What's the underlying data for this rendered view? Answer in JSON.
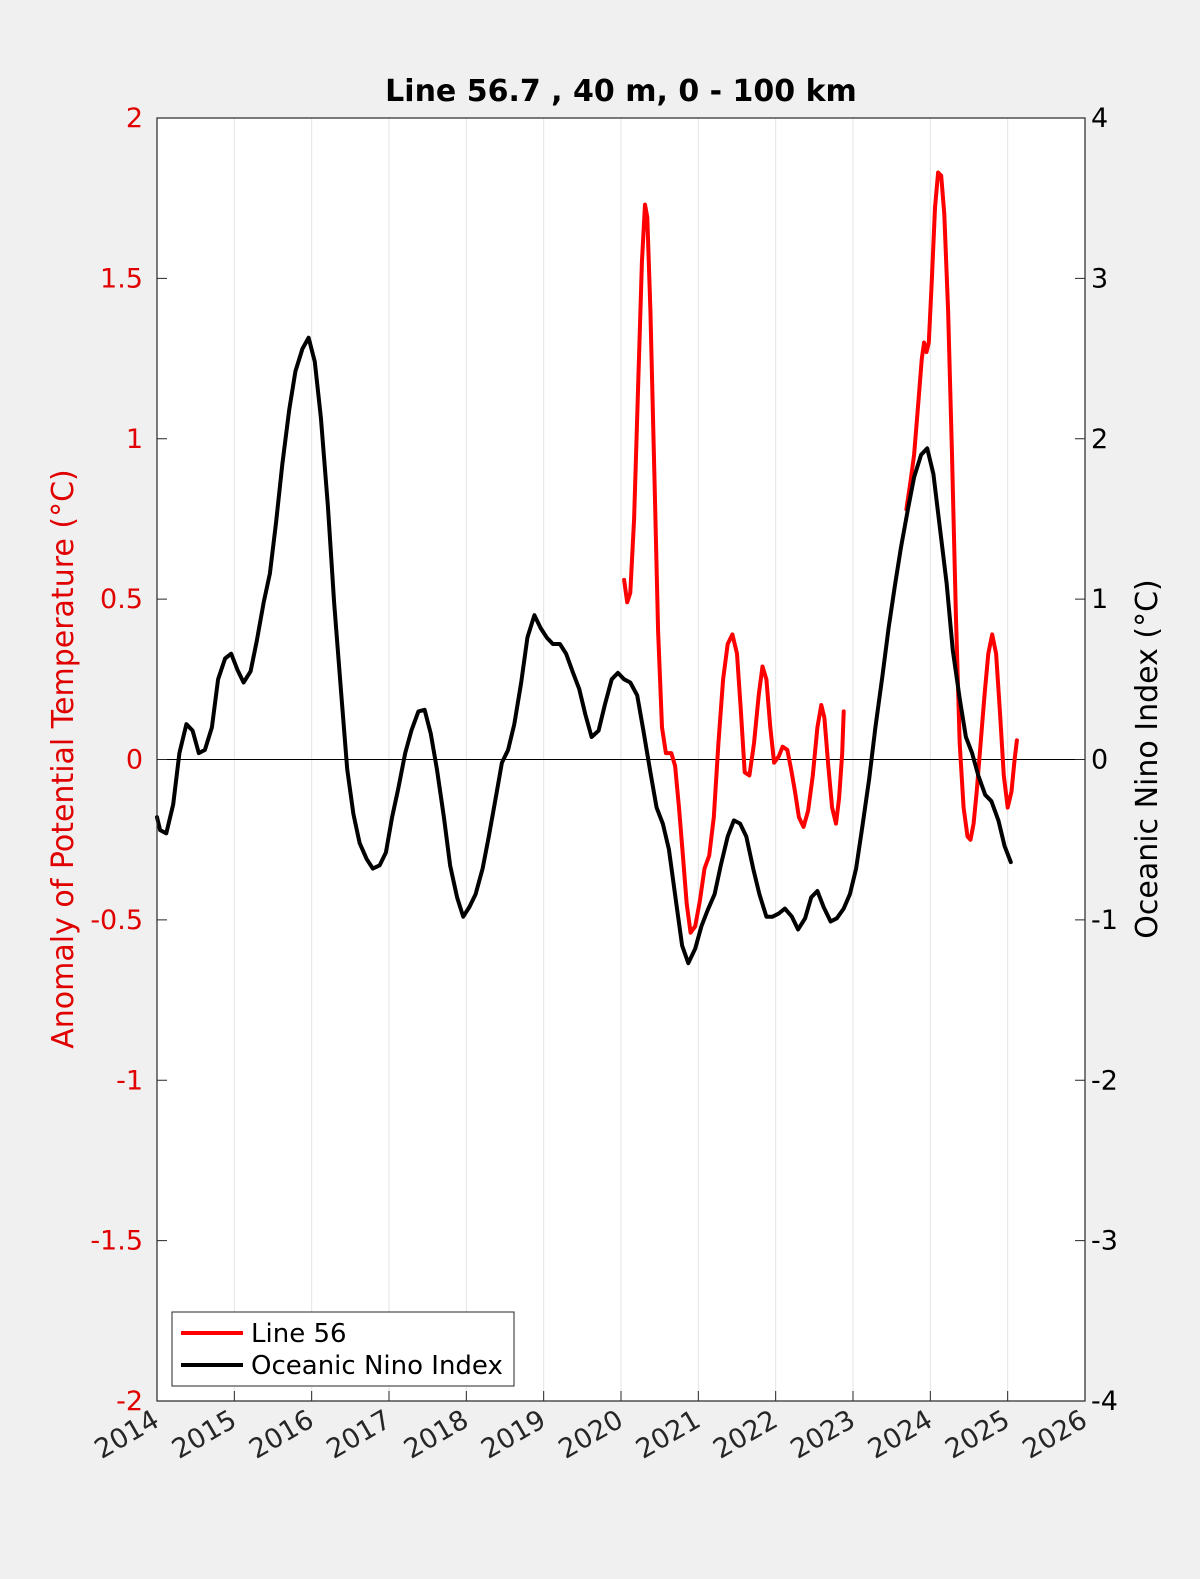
{
  "chart_data": {
    "type": "line",
    "title": "Line 56.7 , 40 m, 0 - 100 km",
    "ylabel_left": "Anomaly of Potential Temperature (°C)",
    "ylabel_right": "Oceanic Nino Index (°C)",
    "xlim": [
      2014,
      2026
    ],
    "ylim_left": [
      -2,
      2
    ],
    "ylim_right": [
      -4,
      4
    ],
    "x_ticks": [
      "2014",
      "2015",
      "2016",
      "2017",
      "2018",
      "2019",
      "2020",
      "2021",
      "2022",
      "2023",
      "2024",
      "2025",
      "2026"
    ],
    "y_ticks_left": [
      "-2",
      "-1.5",
      "-1",
      "-0.5",
      "0",
      "0.5",
      "1",
      "1.5",
      "2"
    ],
    "y_ticks_right": [
      "-4",
      "-3",
      "-2",
      "-1",
      "0",
      "1",
      "2",
      "3",
      "4"
    ],
    "grid": "vertical",
    "legend_position": "bottom-left",
    "colors": {
      "line56": "#ff0000",
      "oni": "#000000",
      "left_axis": "#e00000",
      "right_axis": "#000000"
    },
    "series": [
      {
        "name": "Line 56",
        "axis": "left",
        "segments": [
          [
            [
              2020.04,
              0.56
            ],
            [
              2020.08,
              0.49
            ],
            [
              2020.12,
              0.52
            ],
            [
              2020.17,
              0.75
            ],
            [
              2020.22,
              1.15
            ],
            [
              2020.27,
              1.55
            ],
            [
              2020.31,
              1.73
            ],
            [
              2020.34,
              1.69
            ],
            [
              2020.38,
              1.4
            ],
            [
              2020.43,
              0.9
            ],
            [
              2020.48,
              0.4
            ],
            [
              2020.53,
              0.1
            ],
            [
              2020.58,
              0.02
            ],
            [
              2020.65,
              0.02
            ],
            [
              2020.7,
              -0.02
            ],
            [
              2020.75,
              -0.15
            ],
            [
              2020.8,
              -0.3
            ],
            [
              2020.85,
              -0.45
            ],
            [
              2020.9,
              -0.54
            ],
            [
              2020.96,
              -0.52
            ],
            [
              2021.02,
              -0.44
            ],
            [
              2021.08,
              -0.34
            ],
            [
              2021.14,
              -0.3
            ],
            [
              2021.2,
              -0.18
            ],
            [
              2021.26,
              0.05
            ],
            [
              2021.32,
              0.25
            ],
            [
              2021.38,
              0.36
            ],
            [
              2021.44,
              0.39
            ],
            [
              2021.5,
              0.33
            ],
            [
              2021.55,
              0.15
            ],
            [
              2021.6,
              -0.04
            ],
            [
              2021.66,
              -0.05
            ],
            [
              2021.72,
              0.05
            ],
            [
              2021.78,
              0.2
            ],
            [
              2021.83,
              0.29
            ],
            [
              2021.88,
              0.25
            ],
            [
              2021.93,
              0.1
            ],
            [
              2021.98,
              -0.01
            ],
            [
              2022.04,
              0.01
            ],
            [
              2022.09,
              0.04
            ],
            [
              2022.15,
              0.03
            ],
            [
              2022.2,
              -0.03
            ],
            [
              2022.25,
              -0.1
            ],
            [
              2022.3,
              -0.18
            ],
            [
              2022.36,
              -0.21
            ],
            [
              2022.42,
              -0.16
            ],
            [
              2022.48,
              -0.05
            ],
            [
              2022.54,
              0.1
            ],
            [
              2022.59,
              0.17
            ],
            [
              2022.63,
              0.13
            ],
            [
              2022.68,
              -0.02
            ],
            [
              2022.73,
              -0.15
            ],
            [
              2022.78,
              -0.2
            ],
            [
              2022.82,
              -0.12
            ],
            [
              2022.86,
              0.02
            ],
            [
              2022.88,
              0.15
            ]
          ],
          [
            [
              2023.69,
              0.78
            ],
            [
              2023.74,
              0.86
            ],
            [
              2023.79,
              0.95
            ],
            [
              2023.84,
              1.1
            ],
            [
              2023.89,
              1.25
            ],
            [
              2023.92,
              1.3
            ],
            [
              2023.95,
              1.27
            ],
            [
              2023.98,
              1.3
            ],
            [
              2024.02,
              1.5
            ],
            [
              2024.06,
              1.72
            ],
            [
              2024.1,
              1.83
            ],
            [
              2024.14,
              1.82
            ],
            [
              2024.18,
              1.7
            ],
            [
              2024.23,
              1.4
            ],
            [
              2024.28,
              0.95
            ],
            [
              2024.33,
              0.45
            ],
            [
              2024.38,
              0.05
            ],
            [
              2024.43,
              -0.15
            ],
            [
              2024.48,
              -0.24
            ],
            [
              2024.52,
              -0.25
            ],
            [
              2024.56,
              -0.2
            ],
            [
              2024.6,
              -0.1
            ],
            [
              2024.65,
              0.05
            ],
            [
              2024.7,
              0.2
            ],
            [
              2024.75,
              0.33
            ],
            [
              2024.8,
              0.39
            ],
            [
              2024.85,
              0.33
            ],
            [
              2024.9,
              0.15
            ],
            [
              2024.95,
              -0.05
            ],
            [
              2025.0,
              -0.15
            ],
            [
              2025.05,
              -0.1
            ],
            [
              2025.09,
              0.0
            ],
            [
              2025.12,
              0.06
            ]
          ]
        ]
      },
      {
        "name": "Oceanic Nino Index",
        "axis": "right",
        "segments": [
          [
            [
              2014.0,
              -0.36
            ],
            [
              2014.04,
              -0.44
            ],
            [
              2014.12,
              -0.46
            ],
            [
              2014.21,
              -0.28
            ],
            [
              2014.29,
              0.04
            ],
            [
              2014.38,
              0.22
            ],
            [
              2014.46,
              0.18
            ],
            [
              2014.54,
              0.04
            ],
            [
              2014.62,
              0.06
            ],
            [
              2014.71,
              0.2
            ],
            [
              2014.79,
              0.5
            ],
            [
              2014.88,
              0.63
            ],
            [
              2014.96,
              0.66
            ],
            [
              2015.04,
              0.56
            ],
            [
              2015.12,
              0.48
            ],
            [
              2015.21,
              0.55
            ],
            [
              2015.29,
              0.74
            ],
            [
              2015.38,
              0.98
            ],
            [
              2015.46,
              1.16
            ],
            [
              2015.54,
              1.48
            ],
            [
              2015.62,
              1.84
            ],
            [
              2015.71,
              2.18
            ],
            [
              2015.79,
              2.42
            ],
            [
              2015.88,
              2.56
            ],
            [
              2015.96,
              2.63
            ],
            [
              2016.04,
              2.48
            ],
            [
              2016.12,
              2.13
            ],
            [
              2016.21,
              1.58
            ],
            [
              2016.29,
              0.98
            ],
            [
              2016.38,
              0.42
            ],
            [
              2016.46,
              -0.06
            ],
            [
              2016.54,
              -0.34
            ],
            [
              2016.62,
              -0.52
            ],
            [
              2016.71,
              -0.62
            ],
            [
              2016.79,
              -0.68
            ],
            [
              2016.88,
              -0.66
            ],
            [
              2016.96,
              -0.58
            ],
            [
              2017.04,
              -0.36
            ],
            [
              2017.12,
              -0.18
            ],
            [
              2017.21,
              0.04
            ],
            [
              2017.29,
              0.18
            ],
            [
              2017.38,
              0.3
            ],
            [
              2017.46,
              0.31
            ],
            [
              2017.54,
              0.16
            ],
            [
              2017.62,
              -0.06
            ],
            [
              2017.71,
              -0.36
            ],
            [
              2017.79,
              -0.66
            ],
            [
              2017.88,
              -0.86
            ],
            [
              2017.96,
              -0.98
            ],
            [
              2018.04,
              -0.92
            ],
            [
              2018.12,
              -0.84
            ],
            [
              2018.21,
              -0.68
            ],
            [
              2018.29,
              -0.48
            ],
            [
              2018.38,
              -0.24
            ],
            [
              2018.46,
              -0.02
            ],
            [
              2018.54,
              0.06
            ],
            [
              2018.62,
              0.22
            ],
            [
              2018.71,
              0.48
            ],
            [
              2018.79,
              0.76
            ],
            [
              2018.88,
              0.9
            ],
            [
              2018.96,
              0.82
            ],
            [
              2019.04,
              0.76
            ],
            [
              2019.12,
              0.72
            ],
            [
              2019.21,
              0.72
            ],
            [
              2019.29,
              0.66
            ],
            [
              2019.38,
              0.54
            ],
            [
              2019.46,
              0.44
            ],
            [
              2019.54,
              0.28
            ],
            [
              2019.62,
              0.14
            ],
            [
              2019.71,
              0.18
            ],
            [
              2019.79,
              0.34
            ],
            [
              2019.88,
              0.5
            ],
            [
              2019.96,
              0.54
            ],
            [
              2020.04,
              0.5
            ],
            [
              2020.12,
              0.48
            ],
            [
              2020.21,
              0.4
            ],
            [
              2020.29,
              0.18
            ],
            [
              2020.38,
              -0.08
            ],
            [
              2020.46,
              -0.3
            ],
            [
              2020.54,
              -0.4
            ],
            [
              2020.62,
              -0.56
            ],
            [
              2020.71,
              -0.88
            ],
            [
              2020.79,
              -1.16
            ],
            [
              2020.87,
              -1.27
            ],
            [
              2020.96,
              -1.18
            ],
            [
              2021.04,
              -1.04
            ],
            [
              2021.12,
              -0.94
            ],
            [
              2021.21,
              -0.84
            ],
            [
              2021.29,
              -0.66
            ],
            [
              2021.38,
              -0.48
            ],
            [
              2021.46,
              -0.38
            ],
            [
              2021.54,
              -0.4
            ],
            [
              2021.62,
              -0.48
            ],
            [
              2021.71,
              -0.68
            ],
            [
              2021.79,
              -0.84
            ],
            [
              2021.88,
              -0.98
            ],
            [
              2021.96,
              -0.98
            ],
            [
              2022.04,
              -0.96
            ],
            [
              2022.12,
              -0.93
            ],
            [
              2022.21,
              -0.98
            ],
            [
              2022.29,
              -1.06
            ],
            [
              2022.38,
              -0.99
            ],
            [
              2022.46,
              -0.86
            ],
            [
              2022.54,
              -0.82
            ],
            [
              2022.62,
              -0.92
            ],
            [
              2022.71,
              -1.01
            ],
            [
              2022.79,
              -0.99
            ],
            [
              2022.88,
              -0.93
            ],
            [
              2022.96,
              -0.84
            ],
            [
              2023.04,
              -0.68
            ],
            [
              2023.12,
              -0.42
            ],
            [
              2023.21,
              -0.12
            ],
            [
              2023.29,
              0.2
            ],
            [
              2023.38,
              0.52
            ],
            [
              2023.46,
              0.82
            ],
            [
              2023.54,
              1.08
            ],
            [
              2023.62,
              1.32
            ],
            [
              2023.71,
              1.56
            ],
            [
              2023.79,
              1.76
            ],
            [
              2023.88,
              1.9
            ],
            [
              2023.96,
              1.94
            ],
            [
              2024.04,
              1.78
            ],
            [
              2024.12,
              1.46
            ],
            [
              2024.21,
              1.1
            ],
            [
              2024.29,
              0.68
            ],
            [
              2024.38,
              0.38
            ],
            [
              2024.46,
              0.14
            ],
            [
              2024.54,
              0.04
            ],
            [
              2024.62,
              -0.1
            ],
            [
              2024.71,
              -0.22
            ],
            [
              2024.79,
              -0.26
            ],
            [
              2024.88,
              -0.38
            ],
            [
              2024.96,
              -0.54
            ],
            [
              2025.04,
              -0.64
            ]
          ]
        ]
      }
    ]
  }
}
